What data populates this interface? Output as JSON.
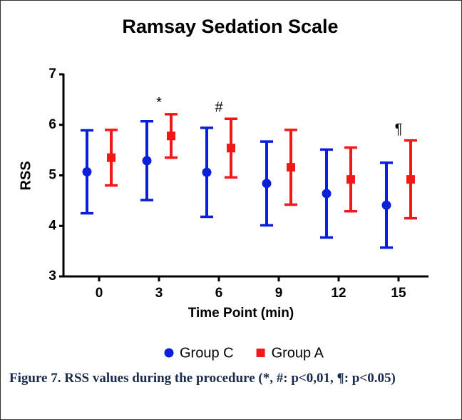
{
  "chart_data": {
    "type": "errorbar",
    "title": "Ramsay Sedation Scale",
    "xlabel": "Time Point (min)",
    "ylabel": "RSS",
    "categories": [
      "0",
      "3",
      "6",
      "9",
      "12",
      "15"
    ],
    "series": [
      {
        "name": "Group C",
        "color": "#0a1fdc",
        "marker": "circle",
        "values": [
          5.07,
          5.29,
          5.06,
          4.84,
          4.64,
          4.41
        ],
        "errors": [
          0.82,
          0.78,
          0.88,
          0.83,
          0.87,
          0.84
        ]
      },
      {
        "name": "Group A",
        "color": "#f01818",
        "marker": "square",
        "values": [
          5.35,
          5.78,
          5.54,
          5.16,
          4.92,
          4.92
        ],
        "errors": [
          0.55,
          0.43,
          0.58,
          0.74,
          0.63,
          0.77
        ]
      }
    ],
    "ylim": [
      3,
      7
    ],
    "yticks": [
      3,
      4,
      5,
      6,
      7
    ],
    "annotations": [
      {
        "text": "*",
        "x": "3"
      },
      {
        "text": "#",
        "x": "6"
      },
      {
        "text": "¶",
        "x": "15"
      }
    ],
    "caption": "Figure 7. RSS values during the procedure (*, #: p<0,01, ¶: p<0.05)"
  }
}
